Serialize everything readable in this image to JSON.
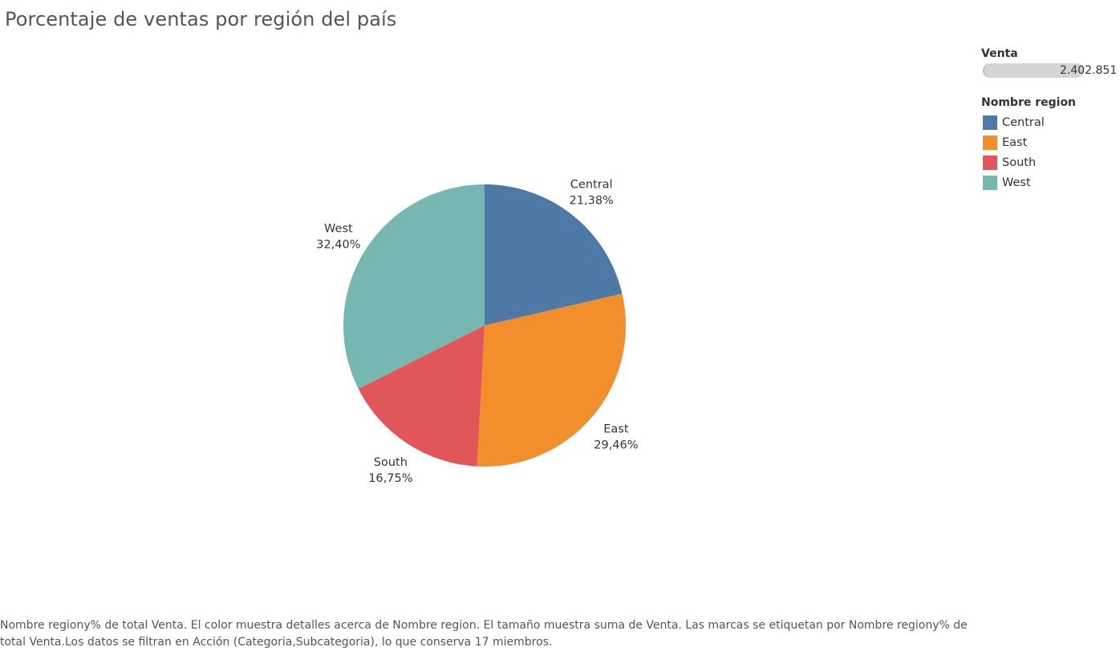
{
  "title": "Porcentaje de ventas por región del país",
  "legend": {
    "size_title": "Venta",
    "size_value": "2.402.851",
    "color_title": "Nombre region",
    "items": [
      {
        "label": "Central",
        "color": "#4E79A7"
      },
      {
        "label": "East",
        "color": "#F28E2B"
      },
      {
        "label": "South",
        "color": "#E15759"
      },
      {
        "label": "West",
        "color": "#76B7B2"
      }
    ]
  },
  "chart_data": {
    "type": "pie",
    "categories": [
      "Central",
      "East",
      "South",
      "West"
    ],
    "values": [
      21.38,
      29.46,
      16.75,
      32.4
    ],
    "value_labels": [
      "21,38%",
      "29,46%",
      "16,75%",
      "32,40%"
    ],
    "colors": [
      "#4E79A7",
      "#F28E2B",
      "#E15759",
      "#76B7B2"
    ],
    "legend_position": "top-right"
  },
  "caption": "Nombre regiony% de total Venta. El color muestra detalles acerca de Nombre region. El tamaño muestra suma de Venta. Las marcas se etiquetan por Nombre regiony% de total Venta.Los datos se filtran en Acción (Categoria,Subcategoria), lo que conserva 17 miembros."
}
